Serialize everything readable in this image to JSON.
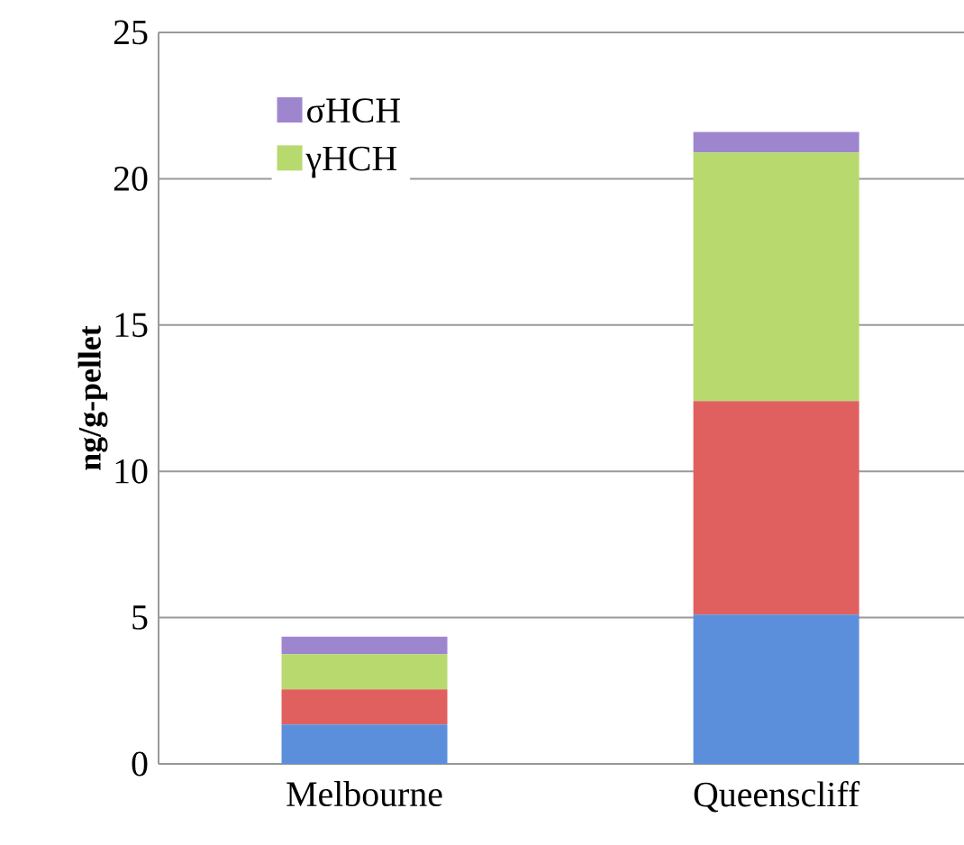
{
  "chart_data": {
    "type": "bar",
    "stacked": true,
    "ylabel": "ng/g-pellet",
    "categories": [
      "Melbourne",
      "Queenscliff"
    ],
    "series": [
      {
        "color": "#5b8fdc",
        "values": [
          1.35,
          5.1
        ]
      },
      {
        "color": "#e06060",
        "values": [
          1.2,
          7.3
        ]
      },
      {
        "name": "γHCH",
        "color": "#b8d96e",
        "values": [
          1.2,
          8.5
        ]
      },
      {
        "name": "σHCH",
        "color": "#9e86cf",
        "values": [
          0.6,
          0.7
        ]
      }
    ],
    "ylim": [
      0,
      25
    ],
    "yticks": [
      0,
      5,
      10,
      15,
      20,
      25
    ],
    "grid": "y",
    "legend": "top left"
  }
}
